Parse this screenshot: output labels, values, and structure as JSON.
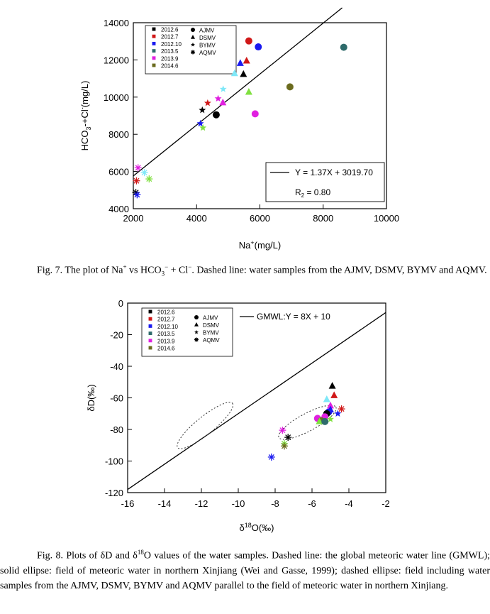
{
  "figure1": {
    "caption": "Fig. 7. The plot of Na+ vs HCO3− + Cl−. Dashed line: water samples from the AJMV, DSMV, BYMV and AQMV.",
    "caption_parts": {
      "a": "Fig. 7. The plot of Na",
      "a_sup": "+",
      "b": " vs HCO",
      "b_sub": "3",
      "b_sup": "−",
      "c": " + Cl",
      "c_sup": "−",
      "d": ". Dashed line: water samples from the AJMV, DSMV, BYMV and AQMV."
    }
  },
  "figure2": {
    "caption": "Fig. 8. Plots of δD and δ18O values of the water samples. Dashed line: the global meteoric water line (GMWL); solid ellipse: field of meteoric water in northern Xinjiang (Wei and Gasse, 1999); dashed ellipse: field including water samples from the AJMV, DSMV, BYMV and AQMV parallel to the field of meteoric water in northern Xinjiang.",
    "caption_parts": {
      "a": "Fig. 8. Plots of δD and δ",
      "a_sup": "18",
      "b": "O values of the water samples. Dashed line: the global meteoric water line (GMWL); solid ellipse: field of meteoric water in northern Xinjiang (Wei and Gasse, 1999); dashed ellipse: field including water samples from the AJMV, DSMV, BYMV and AQMV parallel to the field of meteoric water in northern Xinjiang."
    }
  },
  "chart_data": [
    {
      "type": "scatter",
      "xlabel": "Na+(mg/L)",
      "ylabel": "HCO3-+Cl-(mg/L)",
      "xlim": [
        2000,
        10000
      ],
      "ylim": [
        4000,
        14000
      ],
      "xticks": [
        2000,
        4000,
        6000,
        8000,
        10000
      ],
      "yticks": [
        4000,
        6000,
        8000,
        10000,
        12000,
        14000
      ],
      "legend_years": [
        {
          "label": "2012.6",
          "color": "#000000"
        },
        {
          "label": "2012.7",
          "color": "#d01818"
        },
        {
          "label": "2012.10",
          "color": "#1a1af0"
        },
        {
          "label": "2013.5",
          "color": "#2e6b6b"
        },
        {
          "label": "2013.9",
          "color": "#e020e0"
        },
        {
          "label": "2014.6",
          "color": "#6b6b1e"
        }
      ],
      "legend_sites": [
        {
          "label": "AJMV",
          "marker": "circle"
        },
        {
          "label": "DSMV",
          "marker": "triangle"
        },
        {
          "label": "BYMV",
          "marker": "star"
        },
        {
          "label": "AQMV",
          "marker": "asterisk"
        }
      ],
      "fit": {
        "equation": "Y = 1.37X + 3019.70",
        "r2": "R2 = 0.80",
        "x_range": [
          2000,
          8600
        ]
      },
      "points": [
        {
          "x": 5650,
          "y": 13020,
          "marker": "circle",
          "color": "#d01818"
        },
        {
          "x": 5950,
          "y": 12700,
          "marker": "circle",
          "color": "#1a1af0"
        },
        {
          "x": 8650,
          "y": 12680,
          "marker": "circle",
          "color": "#2e6b6b"
        },
        {
          "x": 6950,
          "y": 10550,
          "marker": "circle",
          "color": "#6b6b1e"
        },
        {
          "x": 4620,
          "y": 9050,
          "marker": "circle",
          "color": "#000000"
        },
        {
          "x": 5850,
          "y": 9100,
          "marker": "circle",
          "color": "#e020e0"
        },
        {
          "x": 5580,
          "y": 11950,
          "marker": "triangle",
          "color": "#d01818"
        },
        {
          "x": 5380,
          "y": 11820,
          "marker": "triangle",
          "color": "#1a1af0"
        },
        {
          "x": 5200,
          "y": 11270,
          "marker": "triangle",
          "color": "#7fe8f8"
        },
        {
          "x": 5480,
          "y": 11230,
          "marker": "triangle",
          "color": "#000000"
        },
        {
          "x": 5650,
          "y": 10270,
          "marker": "triangle",
          "color": "#80e040"
        },
        {
          "x": 4830,
          "y": 9700,
          "marker": "triangle",
          "color": "#e020e0"
        },
        {
          "x": 4840,
          "y": 10430,
          "marker": "star",
          "color": "#7fe8f8"
        },
        {
          "x": 4680,
          "y": 9920,
          "marker": "star",
          "color": "#e020e0"
        },
        {
          "x": 4350,
          "y": 9680,
          "marker": "star",
          "color": "#d01818"
        },
        {
          "x": 4180,
          "y": 9300,
          "marker": "star",
          "color": "#000000"
        },
        {
          "x": 4120,
          "y": 8580,
          "marker": "star",
          "color": "#1a1af0"
        },
        {
          "x": 4200,
          "y": 8350,
          "marker": "star",
          "color": "#80e040"
        },
        {
          "x": 2150,
          "y": 6200,
          "marker": "asterisk",
          "color": "#e020e0"
        },
        {
          "x": 2350,
          "y": 5940,
          "marker": "asterisk",
          "color": "#7fe8f8"
        },
        {
          "x": 2500,
          "y": 5600,
          "marker": "asterisk",
          "color": "#80e040"
        },
        {
          "x": 2100,
          "y": 5500,
          "marker": "asterisk",
          "color": "#d01818"
        },
        {
          "x": 2080,
          "y": 4870,
          "marker": "asterisk",
          "color": "#000000"
        },
        {
          "x": 2120,
          "y": 4750,
          "marker": "asterisk",
          "color": "#1a1af0"
        }
      ]
    },
    {
      "type": "scatter",
      "xlabel": "δ18O(‰)",
      "ylabel": "δD(‰)",
      "xlim": [
        -16,
        -2
      ],
      "ylim": [
        -120,
        0
      ],
      "xticks": [
        -16,
        -14,
        -12,
        -10,
        -8,
        -6,
        -4,
        -2
      ],
      "yticks": [
        0,
        -20,
        -40,
        -60,
        -80,
        -100,
        -120
      ],
      "legend_years": [
        {
          "label": "2012.6",
          "color": "#000000"
        },
        {
          "label": "2012.7",
          "color": "#d01818"
        },
        {
          "label": "2012.10",
          "color": "#1a1af0"
        },
        {
          "label": "2013.5",
          "color": "#2e6b6b"
        },
        {
          "label": "2013.9",
          "color": "#e020e0"
        },
        {
          "label": "2014.6",
          "color": "#6b6b1e"
        }
      ],
      "legend_sites": [
        {
          "label": "AJMV",
          "marker": "circle"
        },
        {
          "label": "DSMV",
          "marker": "triangle"
        },
        {
          "label": "BYMV",
          "marker": "star"
        },
        {
          "label": "AQMV",
          "marker": "asterisk"
        }
      ],
      "gmwl": {
        "label": "GMWL:Y = 8X + 10",
        "slope": 8,
        "intercept": 10
      },
      "ellipses": [
        {
          "cx": -11.8,
          "cy": -77.5,
          "a": 3.6,
          "b": 0.9,
          "angle_deg": 39
        },
        {
          "cx": -6.25,
          "cy": -75.5,
          "a": 3.3,
          "b": 0.9,
          "angle_deg": 28
        }
      ],
      "points": [
        {
          "x": -4.9,
          "y": -52.5,
          "marker": "triangle",
          "color": "#000000"
        },
        {
          "x": -4.8,
          "y": -58.5,
          "marker": "triangle",
          "color": "#d01818"
        },
        {
          "x": -5.2,
          "y": -61,
          "marker": "triangle",
          "color": "#7fe8f8"
        },
        {
          "x": -5.0,
          "y": -65,
          "marker": "triangle",
          "color": "#e020e0"
        },
        {
          "x": -5.0,
          "y": -67.5,
          "marker": "triangle",
          "color": "#1a1af0"
        },
        {
          "x": -4.4,
          "y": -67,
          "marker": "asterisk",
          "color": "#d01818"
        },
        {
          "x": -4.6,
          "y": -70,
          "marker": "star",
          "color": "#1a1af0"
        },
        {
          "x": -5.1,
          "y": -69,
          "marker": "circle",
          "color": "#1a1af0"
        },
        {
          "x": -5.2,
          "y": -70,
          "marker": "circle",
          "color": "#000000"
        },
        {
          "x": -5.3,
          "y": -72,
          "marker": "circle",
          "color": "#e020e0"
        },
        {
          "x": -5.7,
          "y": -73,
          "marker": "circle",
          "color": "#e020e0"
        },
        {
          "x": -5.5,
          "y": -74.5,
          "marker": "circle",
          "color": "#6b6b1e"
        },
        {
          "x": -5.0,
          "y": -73.5,
          "marker": "star",
          "color": "#80e040"
        },
        {
          "x": -5.6,
          "y": -75,
          "marker": "triangle",
          "color": "#80e040"
        },
        {
          "x": -5.3,
          "y": -75,
          "marker": "circle",
          "color": "#2e6b6b"
        },
        {
          "x": -7.6,
          "y": -80.5,
          "marker": "asterisk",
          "color": "#e020e0"
        },
        {
          "x": -7.3,
          "y": -85,
          "marker": "asterisk",
          "color": "#000000"
        },
        {
          "x": -7.5,
          "y": -89,
          "marker": "asterisk",
          "color": "#80e040"
        },
        {
          "x": -7.5,
          "y": -90.5,
          "marker": "asterisk",
          "color": "#6b6b1e"
        },
        {
          "x": -8.2,
          "y": -97.5,
          "marker": "asterisk",
          "color": "#1a1af0"
        }
      ]
    }
  ]
}
